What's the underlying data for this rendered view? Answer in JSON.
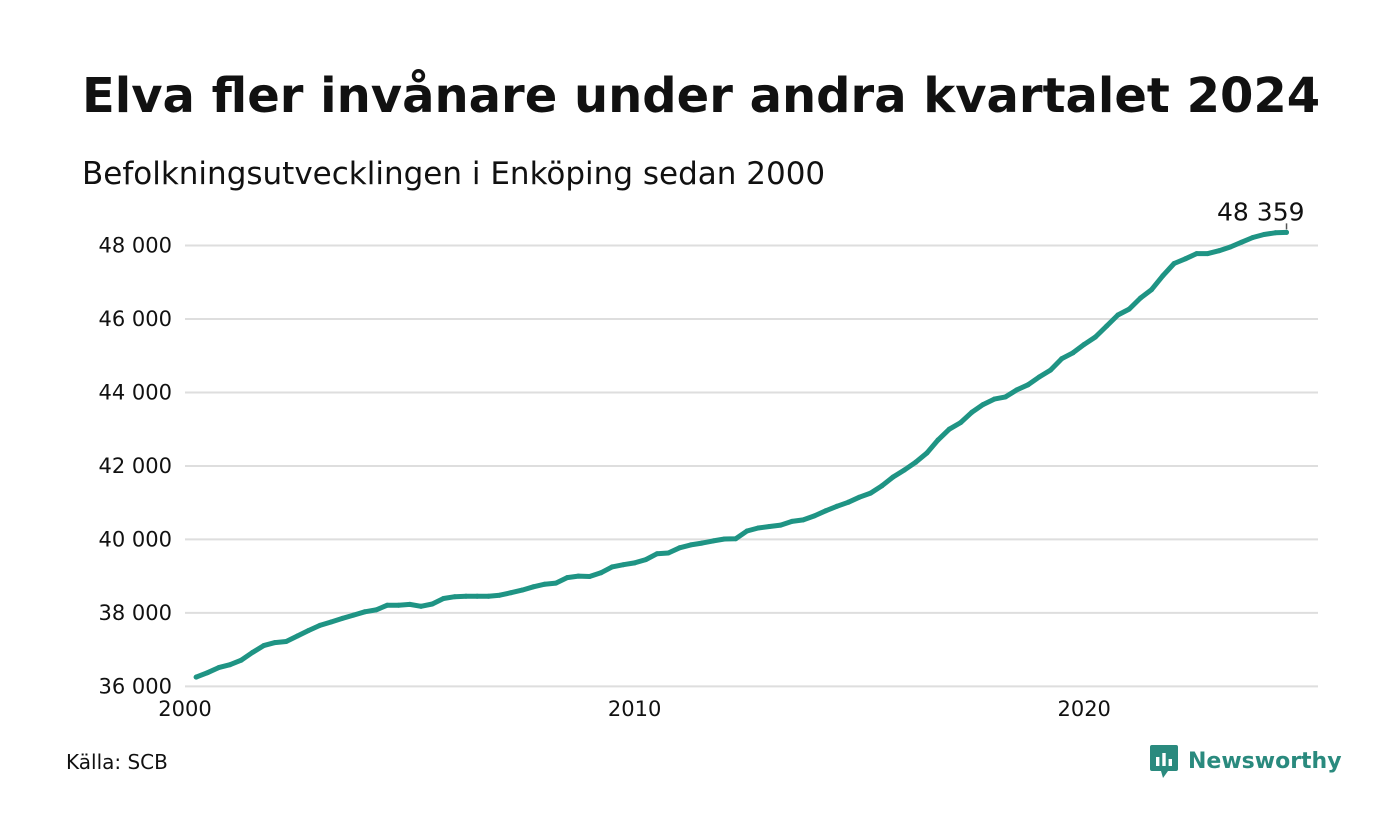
{
  "header": {
    "title": "Elva fler invånare under andra kvartalet 2024",
    "subtitle": "Befolkningsutvecklingen i Enköping sedan 2000"
  },
  "footer": {
    "source": "Källa: SCB",
    "brand": "Newsworthy",
    "brand_icon": "newsworthy-logo-icon"
  },
  "colors": {
    "line": "#1f9484",
    "grid": "#dedede",
    "text": "#111111",
    "brand": "#2a8a7e"
  },
  "chart_data": {
    "type": "line",
    "title": "Elva fler invånare under andra kvartalet 2024",
    "subtitle": "Befolkningsutvecklingen i Enköping sedan 2000",
    "xlabel": "",
    "ylabel": "",
    "xlim": [
      2000,
      2025.2
    ],
    "ylim": [
      35900,
      48750
    ],
    "x_ticks": [
      2000,
      2010,
      2020
    ],
    "x_tick_labels": [
      "2000",
      "2010",
      "2020"
    ],
    "y_ticks": [
      36000,
      38000,
      40000,
      42000,
      44000,
      46000,
      48000
    ],
    "y_tick_labels": [
      "36 000",
      "38 000",
      "40 000",
      "42 000",
      "44 000",
      "46 000",
      "48 000"
    ],
    "grid": "horizontal",
    "last_value_label": "48 359",
    "series": [
      {
        "x": [
          2000.25,
          2000.5,
          2000.75,
          2001.0,
          2001.25,
          2001.5,
          2001.75,
          2002.0,
          2002.25,
          2002.5,
          2002.75,
          2003.0,
          2003.25,
          2003.5,
          2003.75,
          2004.0,
          2004.25,
          2004.5,
          2004.75,
          2005.0,
          2005.25,
          2005.5,
          2005.75,
          2006.0,
          2006.25,
          2006.5,
          2006.75,
          2007.0,
          2007.25,
          2007.5,
          2007.75,
          2008.0,
          2008.25,
          2008.5,
          2008.75,
          2009.0,
          2009.25,
          2009.5,
          2009.75,
          2010.0,
          2010.25,
          2010.5,
          2010.75,
          2011.0,
          2011.25,
          2011.5,
          2011.75,
          2012.0,
          2012.25,
          2012.5,
          2012.75,
          2013.0,
          2013.25,
          2013.5,
          2013.75,
          2014.0,
          2014.25,
          2014.5,
          2014.75,
          2015.0,
          2015.25,
          2015.5,
          2015.75,
          2016.0,
          2016.25,
          2016.5,
          2016.75,
          2017.0,
          2017.25,
          2017.5,
          2017.75,
          2018.0,
          2018.25,
          2018.5,
          2018.75,
          2019.0,
          2019.25,
          2019.5,
          2019.75,
          2020.0,
          2020.25,
          2020.5,
          2020.75,
          2021.0,
          2021.25,
          2021.5,
          2021.75,
          2022.0,
          2022.25,
          2022.5,
          2022.75,
          2023.0,
          2023.25,
          2023.5,
          2023.75,
          2024.0,
          2024.25,
          2024.5
        ],
        "values": [
          36250,
          36370,
          36510,
          36590,
          36710,
          36920,
          37110,
          37190,
          37220,
          37370,
          37520,
          37660,
          37750,
          37850,
          37940,
          38030,
          38080,
          38210,
          38210,
          38230,
          38180,
          38240,
          38390,
          38440,
          38450,
          38450,
          38450,
          38480,
          38550,
          38620,
          38710,
          38780,
          38810,
          38960,
          39000,
          38990,
          39090,
          39250,
          39310,
          39360,
          39450,
          39610,
          39630,
          39770,
          39850,
          39900,
          39960,
          40010,
          40020,
          40230,
          40310,
          40350,
          40390,
          40490,
          40530,
          40640,
          40780,
          40900,
          41010,
          41150,
          41260,
          41460,
          41700,
          41890,
          42100,
          42350,
          42710,
          43000,
          43180,
          43460,
          43670,
          43820,
          43880,
          44070,
          44210,
          44420,
          44610,
          44920,
          45080,
          45310,
          45510,
          45810,
          46110,
          46270,
          46570,
          46800,
          47180,
          47510,
          47640,
          47780,
          47780,
          47860,
          47960,
          48090,
          48220,
          48300,
          48348,
          48359
        ]
      }
    ]
  }
}
